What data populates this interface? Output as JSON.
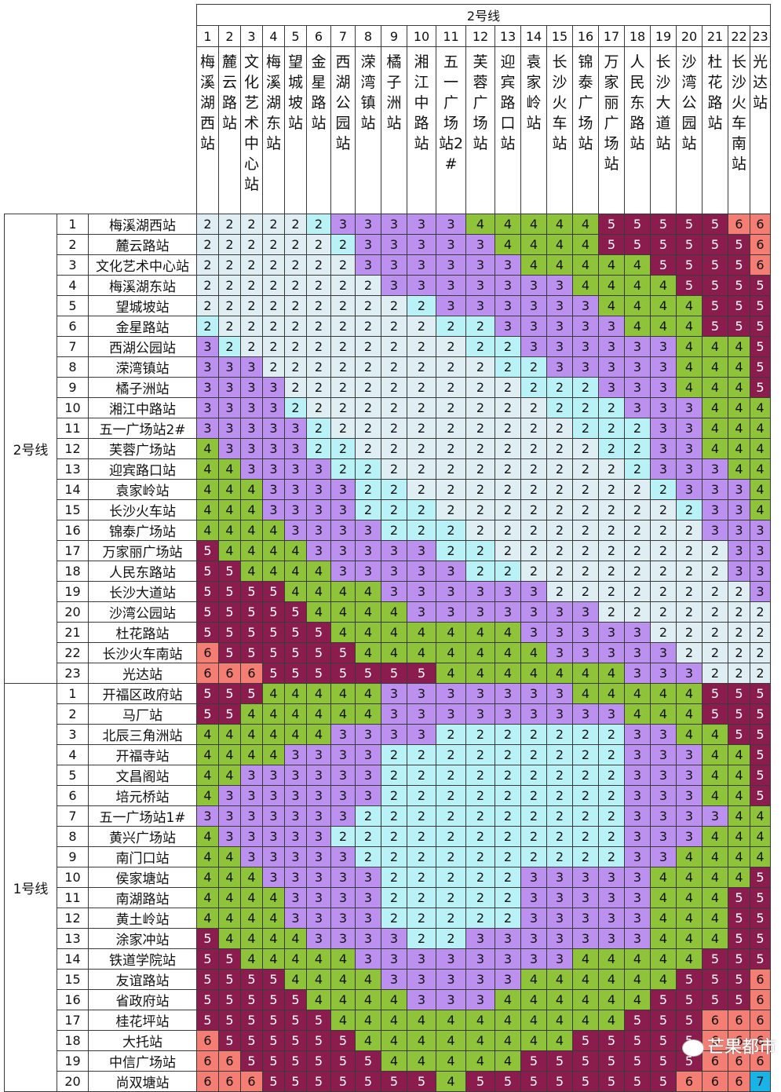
{
  "colors": {
    "2": "#dfeef3",
    "3": "#bb90ee",
    "4": "#8fc43a",
    "5": "#8b1d4e",
    "6": "#f47e74",
    "7": "#1ab3e8",
    "d2": "#b8f2f6"
  },
  "table": {
    "top_header": "2号线",
    "columns": [
      {
        "num": "1",
        "name": "梅溪湖西站"
      },
      {
        "num": "2",
        "name": "麓云路站"
      },
      {
        "num": "3",
        "name": "文化艺术中心站"
      },
      {
        "num": "4",
        "name": "梅溪湖东站"
      },
      {
        "num": "5",
        "name": "望城坡站"
      },
      {
        "num": "6",
        "name": "金星路站"
      },
      {
        "num": "7",
        "name": "西湖公园站"
      },
      {
        "num": "8",
        "name": "溁湾镇站"
      },
      {
        "num": "9",
        "name": "橘子洲站"
      },
      {
        "num": "10",
        "name": "湘江中路站"
      },
      {
        "num": "11",
        "name": "五一广场站2#"
      },
      {
        "num": "12",
        "name": "芙蓉广场站"
      },
      {
        "num": "13",
        "name": "迎宾路口站"
      },
      {
        "num": "14",
        "name": "袁家岭站"
      },
      {
        "num": "15",
        "name": "长沙火车站"
      },
      {
        "num": "16",
        "name": "锦泰广场站"
      },
      {
        "num": "17",
        "name": "万家丽广场站"
      },
      {
        "num": "18",
        "name": "人民东路站"
      },
      {
        "num": "19",
        "name": "长沙大道站"
      },
      {
        "num": "20",
        "name": "沙湾公园站"
      },
      {
        "num": "21",
        "name": "杜花路站"
      },
      {
        "num": "22",
        "name": "长沙火车南站"
      },
      {
        "num": "23",
        "name": "光达站"
      }
    ],
    "groups": [
      {
        "name": "2号线",
        "rows": [
          {
            "num": "1",
            "name": "梅溪湖西站",
            "values": "22222233333444445555566"
          },
          {
            "num": "2",
            "name": "麓云路站",
            "values": "22222223333344445555556"
          },
          {
            "num": "3",
            "name": "文化艺术中心站",
            "values": "22222223333334444455556"
          },
          {
            "num": "4",
            "name": "梅溪湖东站",
            "values": "22222222333333344445555"
          },
          {
            "num": "5",
            "name": "望城坡站",
            "values": "22222222223333334444555"
          },
          {
            "num": "6",
            "name": "金星路站",
            "values": "22222222222233333444555"
          },
          {
            "num": "7",
            "name": "西湖公园站",
            "values": "32222222222223333334445"
          },
          {
            "num": "8",
            "name": "溁湾镇站",
            "values": "33322222222222333334445"
          },
          {
            "num": "9",
            "name": "橘子洲站",
            "values": "33332222222222223334445"
          },
          {
            "num": "10",
            "name": "湘江中路站",
            "values": "33332222222222222333444"
          },
          {
            "num": "11",
            "name": "五一广场站2#",
            "values": "33333222222222222233444"
          },
          {
            "num": "12",
            "name": "芙蓉广场站",
            "values": "43333222222222222233444"
          },
          {
            "num": "13",
            "name": "迎宾路口站",
            "values": "44333322222222222233344"
          },
          {
            "num": "14",
            "name": "袁家岭站",
            "values": "44433332222222222223334"
          },
          {
            "num": "15",
            "name": "长沙火车站",
            "values": "44433332222222222222334"
          },
          {
            "num": "16",
            "name": "锦泰广场站",
            "values": "44443333222222222222333"
          },
          {
            "num": "17",
            "name": "万家丽广场站",
            "values": "54444333332222222222233"
          },
          {
            "num": "18",
            "name": "人民东路站",
            "values": "55444433333222222222233"
          },
          {
            "num": "19",
            "name": "长沙大道站",
            "values": "55554444333333222222223"
          },
          {
            "num": "20",
            "name": "沙湾公园站",
            "values": "55555444433333332222222"
          },
          {
            "num": "21",
            "name": "杜花路站",
            "values": "55555544444443333322222"
          },
          {
            "num": "22",
            "name": "长沙火车南站",
            "values": "65555554444444333332222"
          },
          {
            "num": "23",
            "name": "光达站",
            "values": "66655555554444444333222"
          }
        ]
      },
      {
        "name": "1号线",
        "rows": [
          {
            "num": "1",
            "name": "开福区政府站",
            "values": "55544444333333344444555"
          },
          {
            "num": "2",
            "name": "马厂站",
            "values": "55444444333333333444555"
          },
          {
            "num": "3",
            "name": "北辰三角洲站",
            "values": "44444433332222222334455"
          },
          {
            "num": "4",
            "name": "开福寺站",
            "values": "44443333222222222333445"
          },
          {
            "num": "5",
            "name": "文昌阁站",
            "values": "44333333222222222333445"
          },
          {
            "num": "6",
            "name": "培元桥站",
            "values": "43333333222222222333445"
          },
          {
            "num": "7",
            "name": "五一广场站1#",
            "values": "33333332222222222333344"
          },
          {
            "num": "8",
            "name": "黄兴广场站",
            "values": "43333322222222222333444"
          },
          {
            "num": "9",
            "name": "南门口站",
            "values": "44333332222222222334444"
          },
          {
            "num": "10",
            "name": "侯家塘站",
            "values": "44433333222223333344445"
          },
          {
            "num": "11",
            "name": "南湖路站",
            "values": "44443333222223333344455"
          },
          {
            "num": "12",
            "name": "黄土岭站",
            "values": "44443333222223333344455"
          },
          {
            "num": "13",
            "name": "涂家冲站",
            "values": "54444333322333333344455"
          },
          {
            "num": "14",
            "name": "铁道学院站",
            "values": "55444443333333344444555"
          },
          {
            "num": "15",
            "name": "友谊路站",
            "values": "55554444333334444445556"
          },
          {
            "num": "16",
            "name": "省政府站",
            "values": "55555444433344444455556"
          },
          {
            "num": "17",
            "name": "桂花坪站",
            "values": "55555544444444444555666"
          },
          {
            "num": "18",
            "name": "大托站",
            "values": "65555554444444455555666"
          },
          {
            "num": "19",
            "name": "中信广场站",
            "values": "66555555444445555555666"
          },
          {
            "num": "20",
            "name": "尚双塘站",
            "values": "66655555554555555556667"
          }
        ]
      }
    ]
  },
  "watermark": "芒果都市"
}
